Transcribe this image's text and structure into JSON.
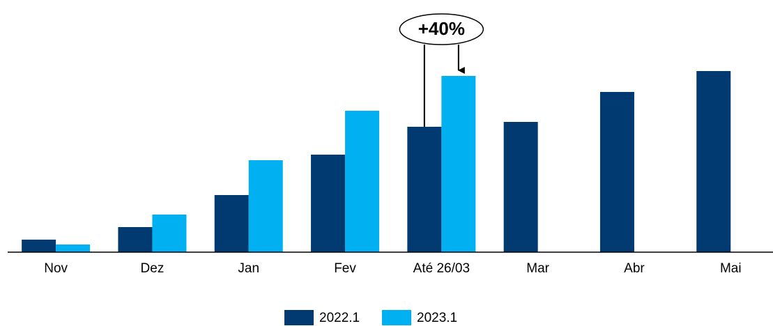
{
  "chart_data": {
    "type": "bar",
    "categories": [
      "Nov",
      "Dez",
      "Jan",
      "Fev",
      "Até 26/03",
      "Mar",
      "Abr",
      "Mai"
    ],
    "series": [
      {
        "name": "2022.1",
        "color": "#003a70",
        "values": [
          18,
          36,
          82,
          140,
          180,
          187,
          230,
          260
        ]
      },
      {
        "name": "2023.1",
        "color": "#00b0f0",
        "values": [
          11,
          54,
          132,
          203,
          253,
          null,
          null,
          null
        ]
      }
    ],
    "ylim": [
      0,
      300
    ],
    "annotations": [
      {
        "text": "+40%",
        "category": 4
      }
    ]
  }
}
